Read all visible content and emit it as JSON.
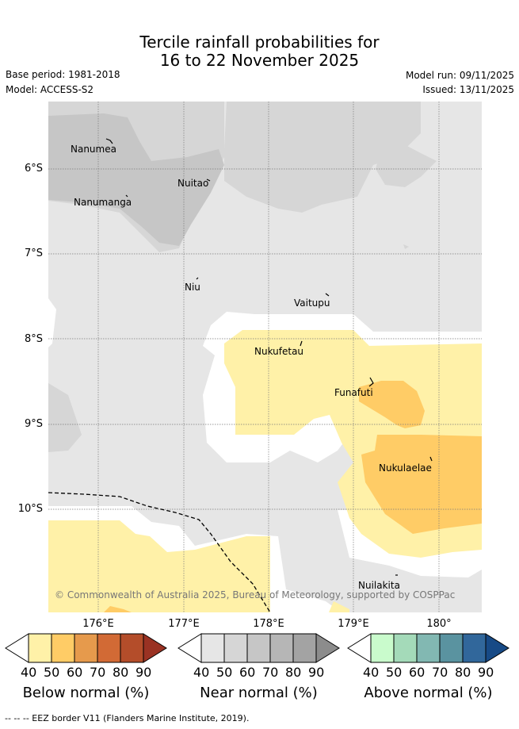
{
  "title": {
    "line1": "Tercile rainfall probabilities for",
    "line2": "16 to 22 November 2025"
  },
  "meta": {
    "base_period": "Base period: 1981-2018",
    "model": "Model: ACCESS-S2",
    "model_run": "Model run: 09/11/2025",
    "issued": "Issued: 13/11/2025"
  },
  "map": {
    "latitude_labels": [
      "6°S",
      "7°S",
      "8°S",
      "9°S",
      "10°S"
    ],
    "longitude_labels": [
      "176°E",
      "177°E",
      "178°E",
      "179°E",
      "180°"
    ],
    "places": [
      "Nanumea",
      "Nuitao",
      "Nanumanga",
      "Niu",
      "Vaitupu",
      "Nukufetau",
      "Funafuti",
      "Nukulaelae",
      "Nuilakita"
    ],
    "copyright": "© Commonwealth of Australia 2025, Bureau of Meteorology, supported by COSPPac"
  },
  "colorbars": {
    "ticks": [
      "40",
      "50",
      "60",
      "70",
      "80",
      "90"
    ],
    "below": {
      "title": "Below normal (%)",
      "colors": [
        "#fff1a8",
        "#ffcc66",
        "#e69a4c",
        "#d26a35",
        "#b44d2a",
        "#9a3223"
      ]
    },
    "near": {
      "title": "Near normal (%)",
      "colors": [
        "#e6e6e6",
        "#d6d6d6",
        "#c6c6c6",
        "#b6b6b6",
        "#a3a3a3",
        "#8c8c8c"
      ]
    },
    "above": {
      "title": "Above normal (%)",
      "colors": [
        "#c9fbcc",
        "#a4dab9",
        "#82b8b2",
        "#5a93a0",
        "#31679b",
        "#174a86"
      ]
    }
  },
  "footer": "--  --  -- EEZ border V11 (Flanders Marine Institute, 2019)."
}
